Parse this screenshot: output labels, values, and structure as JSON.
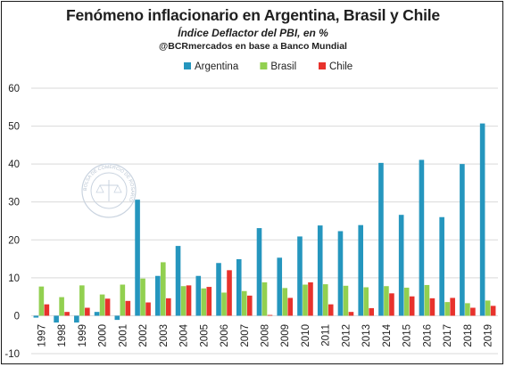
{
  "title": "Fenómeno inflacionario en Argentina, Brasil y Chile",
  "subtitle": "Índice Deflactor del PBI, en %",
  "source": "@BCRmercados en base a Banco Mundial",
  "watermark": "BOLSA DE COMERCIO DE ROSARIO",
  "colors": {
    "argentina": "#2596be",
    "brasil": "#92d050",
    "chile": "#e8322c",
    "gridline": "#d9d9d9",
    "axis_text": "#1f1f1f"
  },
  "chart_data": {
    "type": "bar",
    "categories": [
      "1997",
      "1998",
      "1999",
      "2000",
      "2001",
      "2002",
      "2003",
      "2004",
      "2005",
      "2006",
      "2007",
      "2008",
      "2009",
      "2010",
      "2011",
      "2012",
      "2013",
      "2014",
      "2015",
      "2016",
      "2017",
      "2018",
      "2019"
    ],
    "series": [
      {
        "name": "Argentina",
        "color_key": "argentina",
        "values": [
          -0.5,
          -1.8,
          -1.8,
          1.0,
          -1.1,
          30.6,
          10.5,
          18.4,
          10.5,
          13.9,
          14.9,
          23.1,
          15.3,
          20.9,
          23.8,
          22.3,
          23.9,
          40.3,
          26.6,
          41.1,
          26.0,
          40.0,
          50.7
        ]
      },
      {
        "name": "Brasil",
        "color_key": "brasil",
        "values": [
          7.7,
          4.9,
          8.0,
          5.6,
          8.2,
          9.8,
          14.1,
          7.8,
          7.2,
          6.1,
          6.5,
          8.8,
          7.3,
          8.2,
          8.3,
          7.9,
          7.5,
          7.8,
          7.4,
          8.1,
          3.6,
          3.3,
          4.0
        ]
      },
      {
        "name": "Chile",
        "color_key": "chile",
        "values": [
          3.0,
          1.0,
          2.1,
          4.5,
          3.9,
          3.5,
          4.6,
          8.0,
          7.6,
          12.0,
          5.3,
          0.2,
          4.7,
          8.8,
          3.0,
          1.0,
          2.0,
          5.9,
          5.1,
          4.6,
          4.7,
          2.1,
          2.6
        ]
      }
    ],
    "ylim": [
      -10,
      60
    ],
    "yticks": [
      -10,
      0,
      10,
      20,
      30,
      40,
      50,
      60
    ],
    "grid": true,
    "legend_position": "top-center"
  }
}
